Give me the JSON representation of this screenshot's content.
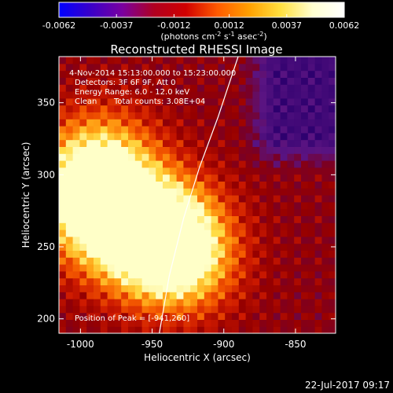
{
  "colorbar": {
    "ticks": [
      "-0.0062",
      "-0.0037",
      "-0.0012",
      "0.0012",
      "0.0037",
      "0.0062"
    ],
    "tick_values": [
      -0.0062,
      -0.0037,
      -0.0012,
      0.0012,
      0.0037,
      0.0062
    ],
    "range": [
      -0.0062,
      0.0062
    ],
    "unit_main": "(photons cm",
    "unit_sup1": "-2",
    "unit_mid": " s",
    "unit_sup2": "-1",
    "unit_tail": " asec",
    "unit_sup3": "-2",
    "unit_close": ")",
    "gradient_colors": [
      "#0000ff",
      "#3a00c8",
      "#7a00a0",
      "#b00020",
      "#d00000",
      "#ff5a00",
      "#ffa000",
      "#ffe040",
      "#ffffd0",
      "#ffffff"
    ]
  },
  "title": "Reconstructed RHESSI Image",
  "annotations": {
    "time_range": "4-Nov-2014 15:13:00.000 to 15:23:00.000",
    "detectors": "Detectors: 3F 6F 9F, Att 0",
    "energy": "Energy Range: 6.0 - 12.0 keV",
    "clean": "Clean",
    "counts": "Total counts: 3.08E+04",
    "peak": "Position of Peak = [-941,260]"
  },
  "footer_timestamp": "22-Jul-2017 09:17",
  "chart_data": {
    "type": "heatmap",
    "title": "Reconstructed RHESSI Image",
    "xlabel": "Heliocentric X (arcsec)",
    "ylabel": "Heliocentric Y (arcsec)",
    "xlim": [
      -1015,
      -822
    ],
    "ylim": [
      190,
      382
    ],
    "x_ticks": [
      -1000,
      -950,
      -900,
      -850
    ],
    "x_tick_labels": [
      "-1000",
      "-950",
      "-900",
      "-850"
    ],
    "y_ticks": [
      200,
      250,
      300,
      350
    ],
    "y_tick_labels": [
      "200",
      "250",
      "300",
      "350"
    ],
    "peak": [
      -941,
      260
    ],
    "limb_curve": [
      [
        -945,
        190
      ],
      [
        -938,
        230
      ],
      [
        -928,
        270
      ],
      [
        -917,
        305
      ],
      [
        -904,
        340
      ],
      [
        -890,
        382
      ]
    ],
    "bright_sources": [
      {
        "x": -995,
        "y": 285,
        "value": 0.0055
      },
      {
        "x": -985,
        "y": 310,
        "value": 0.0045
      },
      {
        "x": -941,
        "y": 260,
        "value": 0.0062
      },
      {
        "x": -930,
        "y": 240,
        "value": 0.0048
      },
      {
        "x": -975,
        "y": 260,
        "value": 0.004
      }
    ],
    "negative_region": {
      "x": [
        -890,
        -822
      ],
      "y": [
        300,
        382
      ],
      "value": -0.0012
    }
  }
}
